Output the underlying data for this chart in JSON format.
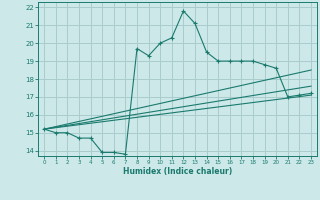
{
  "xlabel": "Humidex (Indice chaleur)",
  "bg_color": "#cce8e8",
  "grid_color": "#aacccc",
  "line_color": "#1a7a6e",
  "xlim": [
    -0.5,
    23.5
  ],
  "ylim": [
    13.7,
    22.3
  ],
  "xticks": [
    0,
    1,
    2,
    3,
    4,
    5,
    6,
    7,
    8,
    9,
    10,
    11,
    12,
    13,
    14,
    15,
    16,
    17,
    18,
    19,
    20,
    21,
    22,
    23
  ],
  "yticks": [
    14,
    15,
    16,
    17,
    18,
    19,
    20,
    21,
    22
  ],
  "line1_x": [
    0,
    1,
    2,
    3,
    4,
    5,
    6,
    7,
    8,
    9,
    10,
    11,
    12,
    13,
    14,
    15,
    16,
    17,
    18,
    19,
    20,
    21,
    22,
    23
  ],
  "line1_y": [
    15.2,
    15.0,
    15.0,
    14.7,
    14.7,
    13.9,
    13.9,
    13.8,
    19.7,
    19.3,
    20.0,
    20.3,
    21.8,
    21.1,
    19.5,
    19.0,
    19.0,
    19.0,
    19.0,
    18.8,
    18.6,
    17.0,
    17.1,
    17.2
  ],
  "line2_x": [
    0,
    23
  ],
  "line2_y": [
    15.2,
    18.5
  ],
  "line3_x": [
    0,
    23
  ],
  "line3_y": [
    15.2,
    17.6
  ],
  "line4_x": [
    0,
    23
  ],
  "line4_y": [
    15.2,
    17.1
  ]
}
